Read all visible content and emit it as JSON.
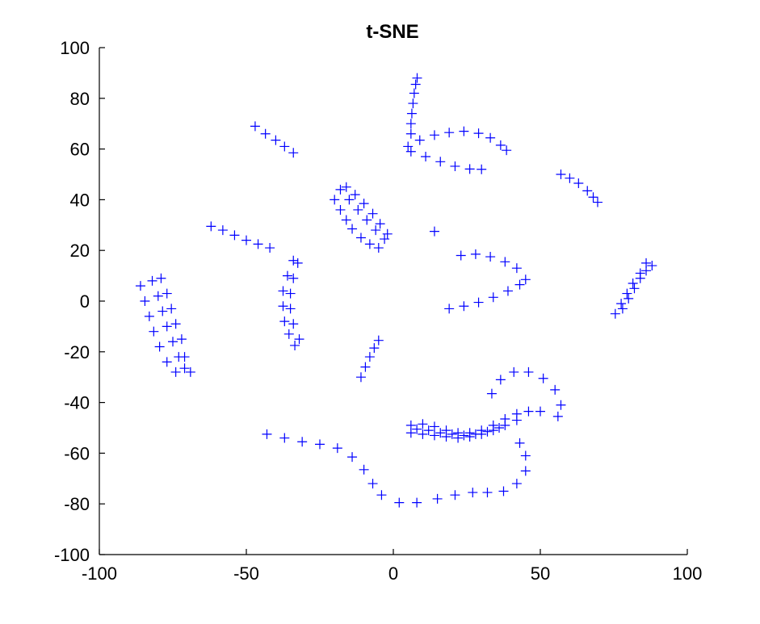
{
  "chart_data": {
    "type": "scatter",
    "title": "t-SNE",
    "xlabel": "",
    "ylabel": "",
    "xlim": [
      -100,
      100
    ],
    "ylim": [
      -100,
      100
    ],
    "xticks": [
      "-100",
      "-50",
      "0",
      "50",
      "100"
    ],
    "yticks": [
      "100",
      "80",
      "60",
      "40",
      "20",
      "0",
      "-20",
      "-40",
      "-60",
      "-80",
      "-100"
    ],
    "marker": "+",
    "color": "#0000ff",
    "grid": false,
    "legend": "none",
    "points": [
      [
        6,
        66
      ],
      [
        6,
        70
      ],
      [
        6.3,
        74
      ],
      [
        6.7,
        78
      ],
      [
        7.1,
        82
      ],
      [
        7.6,
        85.5
      ],
      [
        8.1,
        88
      ],
      [
        5,
        61
      ],
      [
        9,
        63.5
      ],
      [
        14,
        65.5
      ],
      [
        19,
        66.5
      ],
      [
        24,
        67
      ],
      [
        29,
        66.2
      ],
      [
        33,
        64.4
      ],
      [
        36.5,
        61.5
      ],
      [
        38.5,
        59.5
      ],
      [
        6,
        59
      ],
      [
        11,
        57
      ],
      [
        16,
        55
      ],
      [
        21,
        53.2
      ],
      [
        26,
        52.1
      ],
      [
        30,
        52
      ],
      [
        -47,
        69
      ],
      [
        -43.5,
        66
      ],
      [
        -40,
        63.5
      ],
      [
        -37,
        61
      ],
      [
        -34,
        58.5
      ],
      [
        -62,
        29.5
      ],
      [
        -58,
        28
      ],
      [
        -54,
        26
      ],
      [
        -50,
        24
      ],
      [
        -46,
        22.5
      ],
      [
        -42,
        21
      ],
      [
        -20,
        40
      ],
      [
        -18,
        36
      ],
      [
        -16,
        32
      ],
      [
        -14,
        28.5
      ],
      [
        -11,
        25
      ],
      [
        -8,
        22.5
      ],
      [
        -5,
        21
      ],
      [
        -16,
        45
      ],
      [
        -13,
        42
      ],
      [
        -10,
        38.5
      ],
      [
        -7,
        34.5
      ],
      [
        -4.5,
        30.5
      ],
      [
        -2,
        26.5
      ],
      [
        -18,
        44
      ],
      [
        -15,
        40
      ],
      [
        -12,
        36
      ],
      [
        -9,
        32
      ],
      [
        -6,
        28
      ],
      [
        -3,
        24.5
      ],
      [
        -34,
        16
      ],
      [
        -36,
        10
      ],
      [
        -37.5,
        4
      ],
      [
        -37.5,
        -2
      ],
      [
        -37,
        -8
      ],
      [
        -35.5,
        -13
      ],
      [
        -33.5,
        -17.5
      ],
      [
        -32.5,
        15
      ],
      [
        -34,
        9
      ],
      [
        -35,
        3
      ],
      [
        -35,
        -3
      ],
      [
        -34,
        -9
      ],
      [
        -32,
        -15
      ],
      [
        -86,
        6
      ],
      [
        -84.5,
        0
      ],
      [
        -83,
        -6
      ],
      [
        -81.5,
        -12
      ],
      [
        -79.5,
        -18
      ],
      [
        -77,
        -24
      ],
      [
        -74,
        -28
      ],
      [
        -82,
        8
      ],
      [
        -80,
        2
      ],
      [
        -78.5,
        -4
      ],
      [
        -77,
        -10
      ],
      [
        -75,
        -16
      ],
      [
        -73,
        -22
      ],
      [
        -71,
        -26.5
      ],
      [
        -69,
        -28
      ],
      [
        -79,
        9
      ],
      [
        -77,
        3
      ],
      [
        -75.5,
        -3
      ],
      [
        -74,
        -9
      ],
      [
        -72,
        -15
      ],
      [
        -71,
        -22
      ],
      [
        -11,
        -30
      ],
      [
        -9.5,
        -26
      ],
      [
        -8,
        -22
      ],
      [
        -6.5,
        -18.5
      ],
      [
        -5,
        -15.5
      ],
      [
        14,
        27.5
      ],
      [
        23,
        18
      ],
      [
        28,
        18.5
      ],
      [
        33,
        17.5
      ],
      [
        38,
        15.5
      ],
      [
        42,
        13
      ],
      [
        19,
        -3
      ],
      [
        24,
        -2
      ],
      [
        29,
        -0.5
      ],
      [
        34,
        1.5
      ],
      [
        39,
        4
      ],
      [
        43,
        6.5
      ],
      [
        45,
        8.5
      ],
      [
        57,
        50
      ],
      [
        60,
        48.5
      ],
      [
        63,
        46.5
      ],
      [
        66,
        43.5
      ],
      [
        68,
        41
      ],
      [
        69.5,
        39
      ],
      [
        75.5,
        -5
      ],
      [
        77.5,
        -1
      ],
      [
        79.5,
        3
      ],
      [
        81.5,
        7
      ],
      [
        84,
        11
      ],
      [
        86,
        15
      ],
      [
        78,
        -3
      ],
      [
        80,
        1
      ],
      [
        82,
        5
      ],
      [
        84,
        9
      ],
      [
        86,
        12
      ],
      [
        88,
        14
      ],
      [
        -43,
        -52.5
      ],
      [
        -37,
        -54
      ],
      [
        -31,
        -55.5
      ],
      [
        -25,
        -56.5
      ],
      [
        -19,
        -58
      ],
      [
        -14,
        -61.5
      ],
      [
        -10,
        -66.5
      ],
      [
        -7,
        -72
      ],
      [
        -4,
        -76.5
      ],
      [
        2,
        -79.5
      ],
      [
        8,
        -79.5
      ],
      [
        15,
        -78
      ],
      [
        21,
        -76.5
      ],
      [
        27,
        -75.5
      ],
      [
        32,
        -75.5
      ],
      [
        37.5,
        -75
      ],
      [
        42,
        -72
      ],
      [
        45,
        -67
      ],
      [
        45,
        -61
      ],
      [
        43,
        -56
      ],
      [
        56,
        -45.5
      ],
      [
        57,
        -41
      ],
      [
        55,
        -35
      ],
      [
        51,
        -30.5
      ],
      [
        46,
        -28
      ],
      [
        41,
        -28
      ],
      [
        36.5,
        -31
      ],
      [
        33.5,
        -36.5
      ],
      [
        6,
        -49
      ],
      [
        10,
        -48.5
      ],
      [
        14,
        -49.5
      ],
      [
        18,
        -51
      ],
      [
        22,
        -52
      ],
      [
        26,
        -52
      ],
      [
        30,
        -51
      ],
      [
        34,
        -49
      ],
      [
        38,
        -46.5
      ],
      [
        42,
        -44.5
      ],
      [
        46,
        -43.5
      ],
      [
        50,
        -43.5
      ],
      [
        6,
        -52
      ],
      [
        10,
        -52.5
      ],
      [
        14,
        -53
      ],
      [
        18,
        -53.5
      ],
      [
        22,
        -54
      ],
      [
        26,
        -53.5
      ],
      [
        30,
        -52.5
      ],
      [
        34,
        -51
      ],
      [
        38,
        -49
      ],
      [
        42,
        -47
      ],
      [
        8,
        -50.5
      ],
      [
        12,
        -51
      ],
      [
        16,
        -52
      ],
      [
        20,
        -52.5
      ],
      [
        24,
        -53
      ],
      [
        28,
        -52.5
      ],
      [
        32,
        -51.5
      ],
      [
        36,
        -50
      ]
    ]
  }
}
